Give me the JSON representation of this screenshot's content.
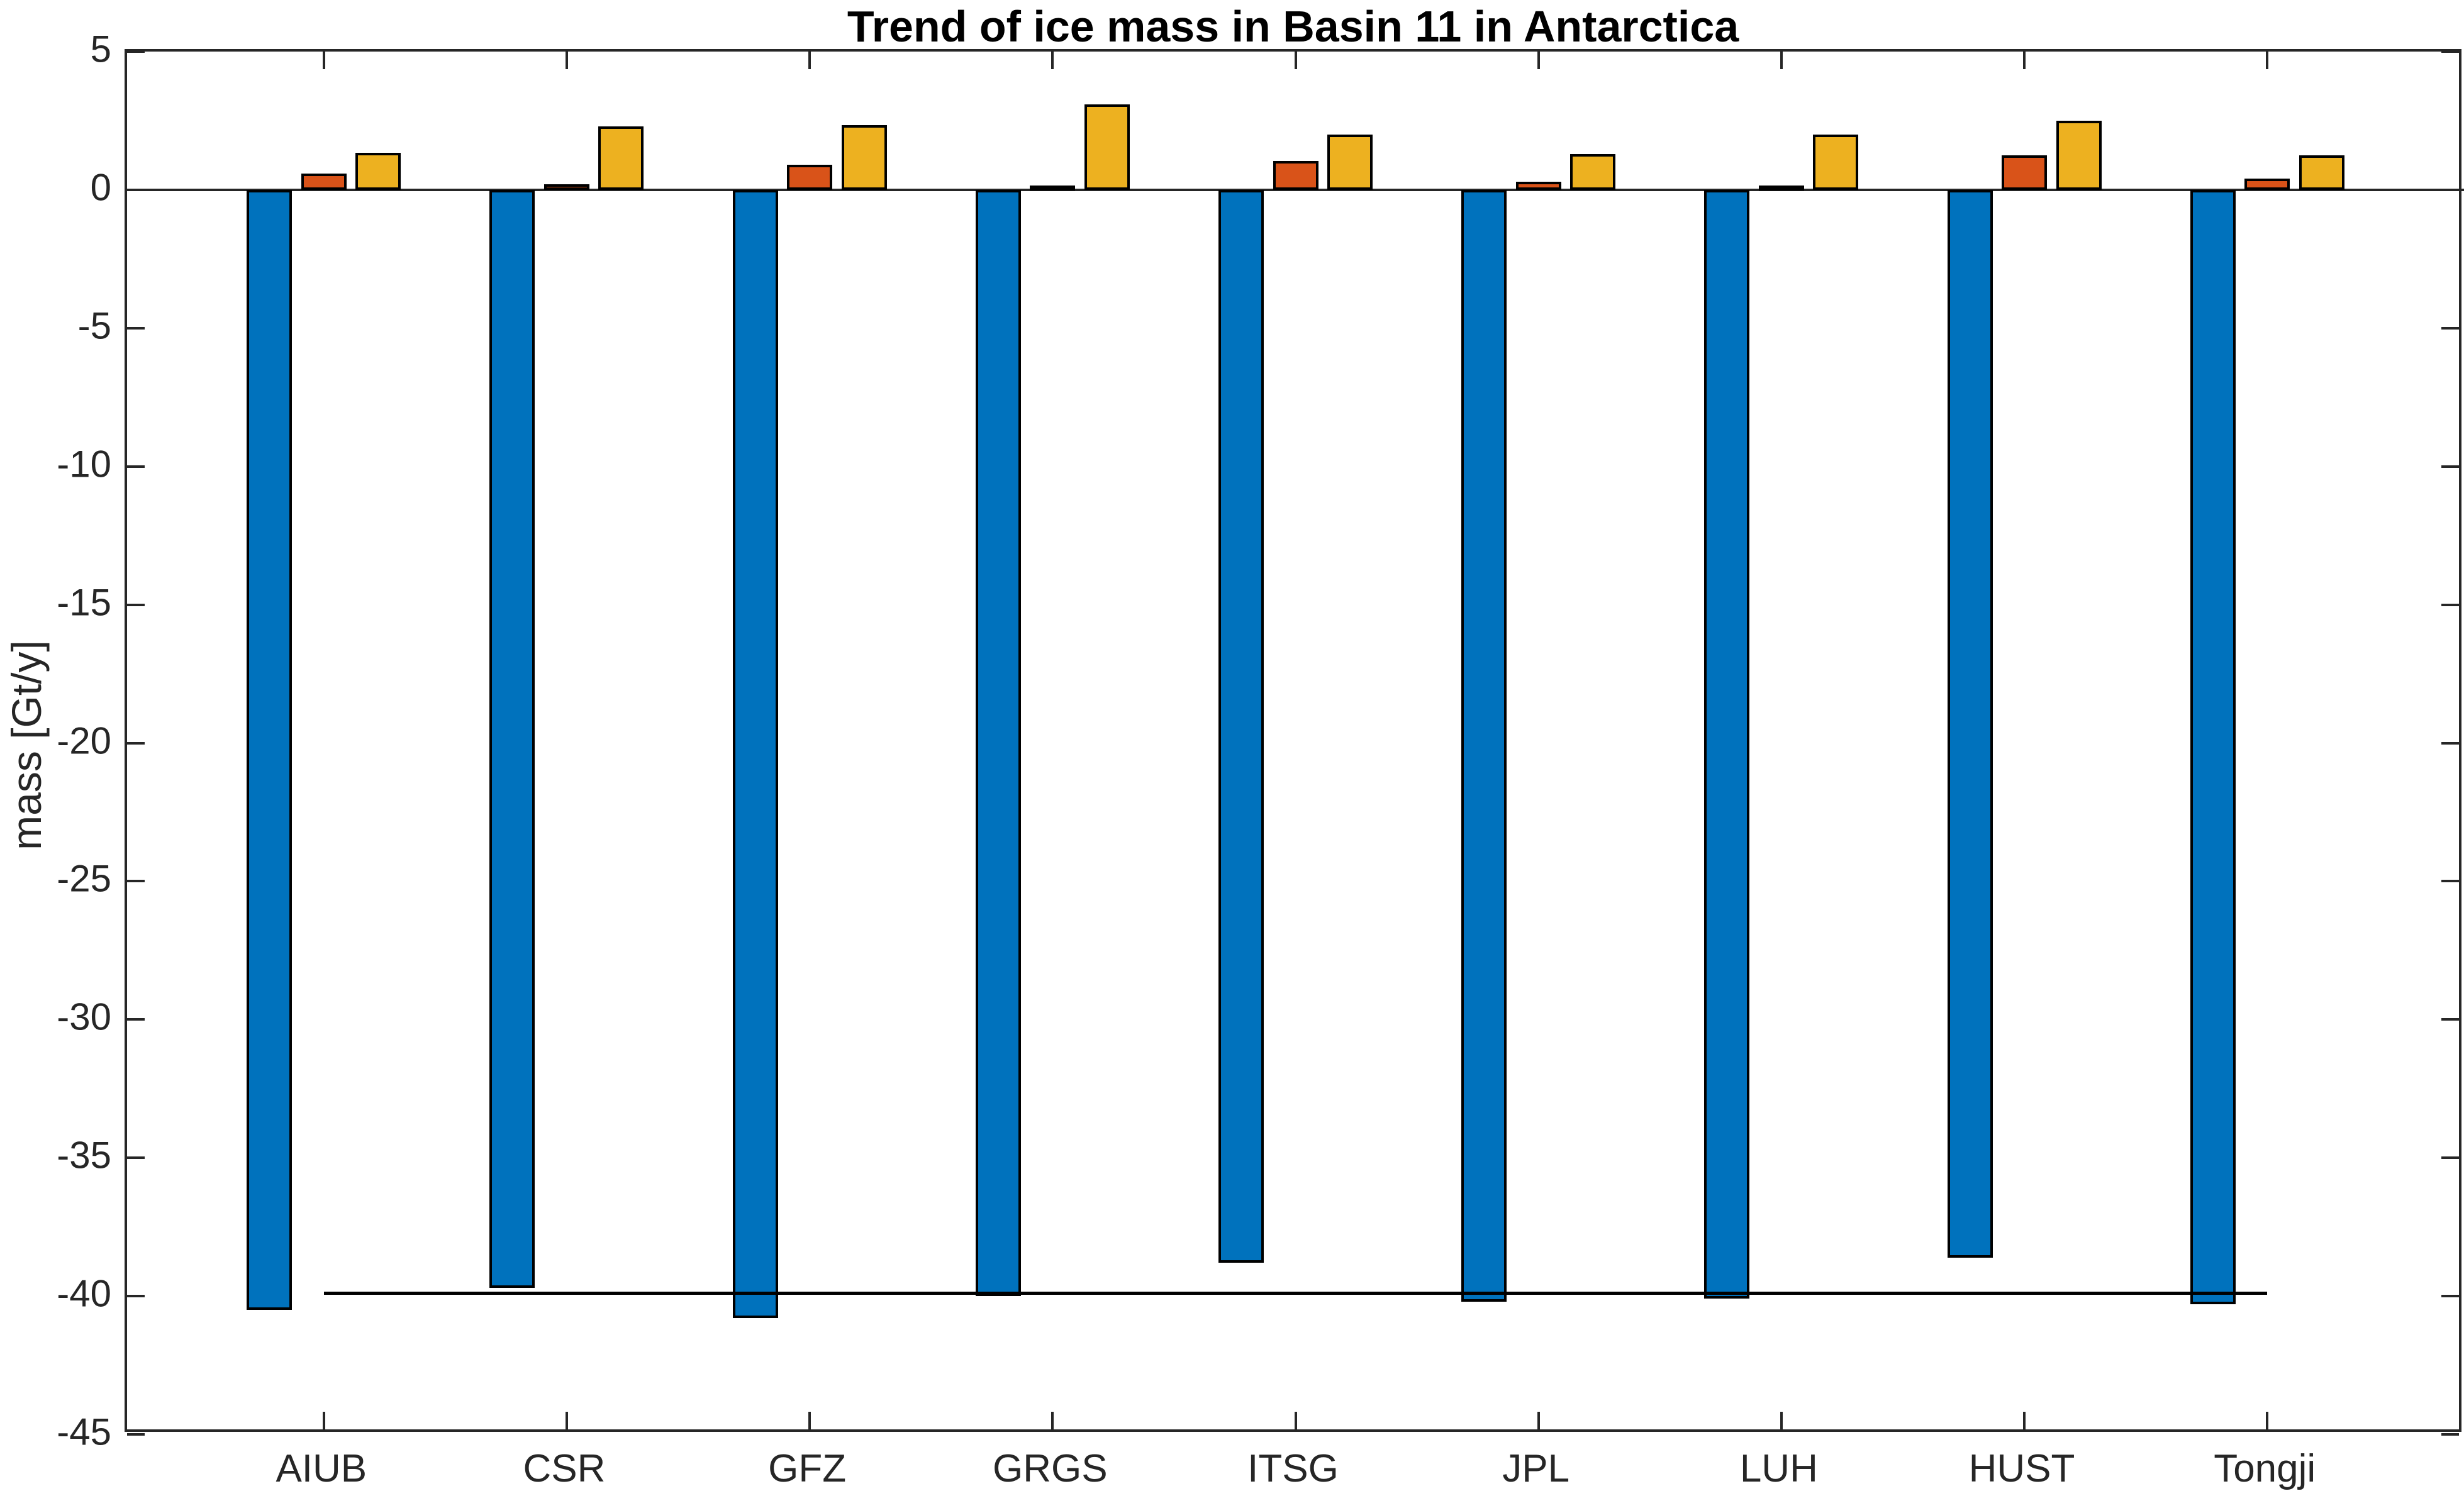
{
  "figure": {
    "background": "#ffffff",
    "axis_color": "#262626"
  },
  "chart_data": {
    "type": "bar",
    "title": "Trend of ice mass in Basin 11 in Antarctica",
    "xlabel": "",
    "ylabel": "mass [Gt/y]",
    "categories": [
      "AIUB",
      "CSR",
      "GFZ",
      "GRGS",
      "ITSG",
      "JPL",
      "LUH",
      "HUST",
      "Tongji"
    ],
    "series": [
      {
        "name": "series-1-blue",
        "color": "#0072BD",
        "values": [
          -40.5,
          -39.7,
          -40.8,
          -40.0,
          -38.8,
          -40.2,
          -40.1,
          -38.6,
          -40.3
        ]
      },
      {
        "name": "series-2-orange",
        "color": "#D95319",
        "values": [
          0.6,
          0.2,
          0.9,
          0.15,
          1.05,
          0.3,
          0.15,
          1.25,
          0.4
        ]
      },
      {
        "name": "series-3-yellow",
        "color": "#EDB120",
        "values": [
          1.35,
          2.3,
          2.35,
          3.1,
          2.0,
          1.3,
          2.0,
          2.5,
          1.25
        ]
      }
    ],
    "reference_line": {
      "value": -39.9,
      "color": "#000000",
      "note": "horizontal mean line spanning from first to last category center"
    },
    "ylim": [
      -45,
      5
    ],
    "yticks": [
      5,
      0,
      -5,
      -10,
      -15,
      -20,
      -25,
      -30,
      -35,
      -40,
      -45
    ],
    "ytick_labels": [
      "5",
      "0",
      "-5",
      "-10",
      "-15",
      "-20",
      "-25",
      "-30",
      "-35",
      "-40",
      "-45"
    ],
    "grid": false,
    "legend": false,
    "box": true,
    "tick_direction": "in",
    "bar_edge_color": "#000000",
    "baseline_value": 0
  }
}
